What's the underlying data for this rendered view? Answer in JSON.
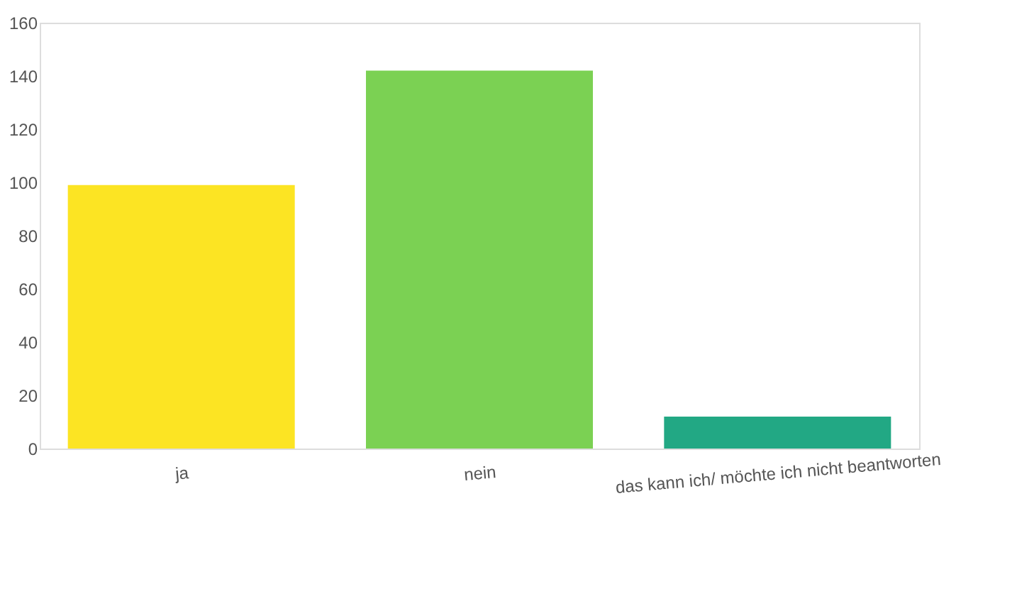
{
  "chart_data": {
    "type": "bar",
    "categories": [
      "ja",
      "nein",
      "das kann ich/ möchte ich nicht beantworten"
    ],
    "values": [
      99,
      142,
      12
    ],
    "colors": [
      "#fce423",
      "#7bd153",
      "#22a884"
    ],
    "ylim": [
      0,
      160
    ],
    "yticks": [
      0,
      20,
      40,
      60,
      80,
      100,
      120,
      140,
      160
    ],
    "grid": false,
    "legend": false
  }
}
